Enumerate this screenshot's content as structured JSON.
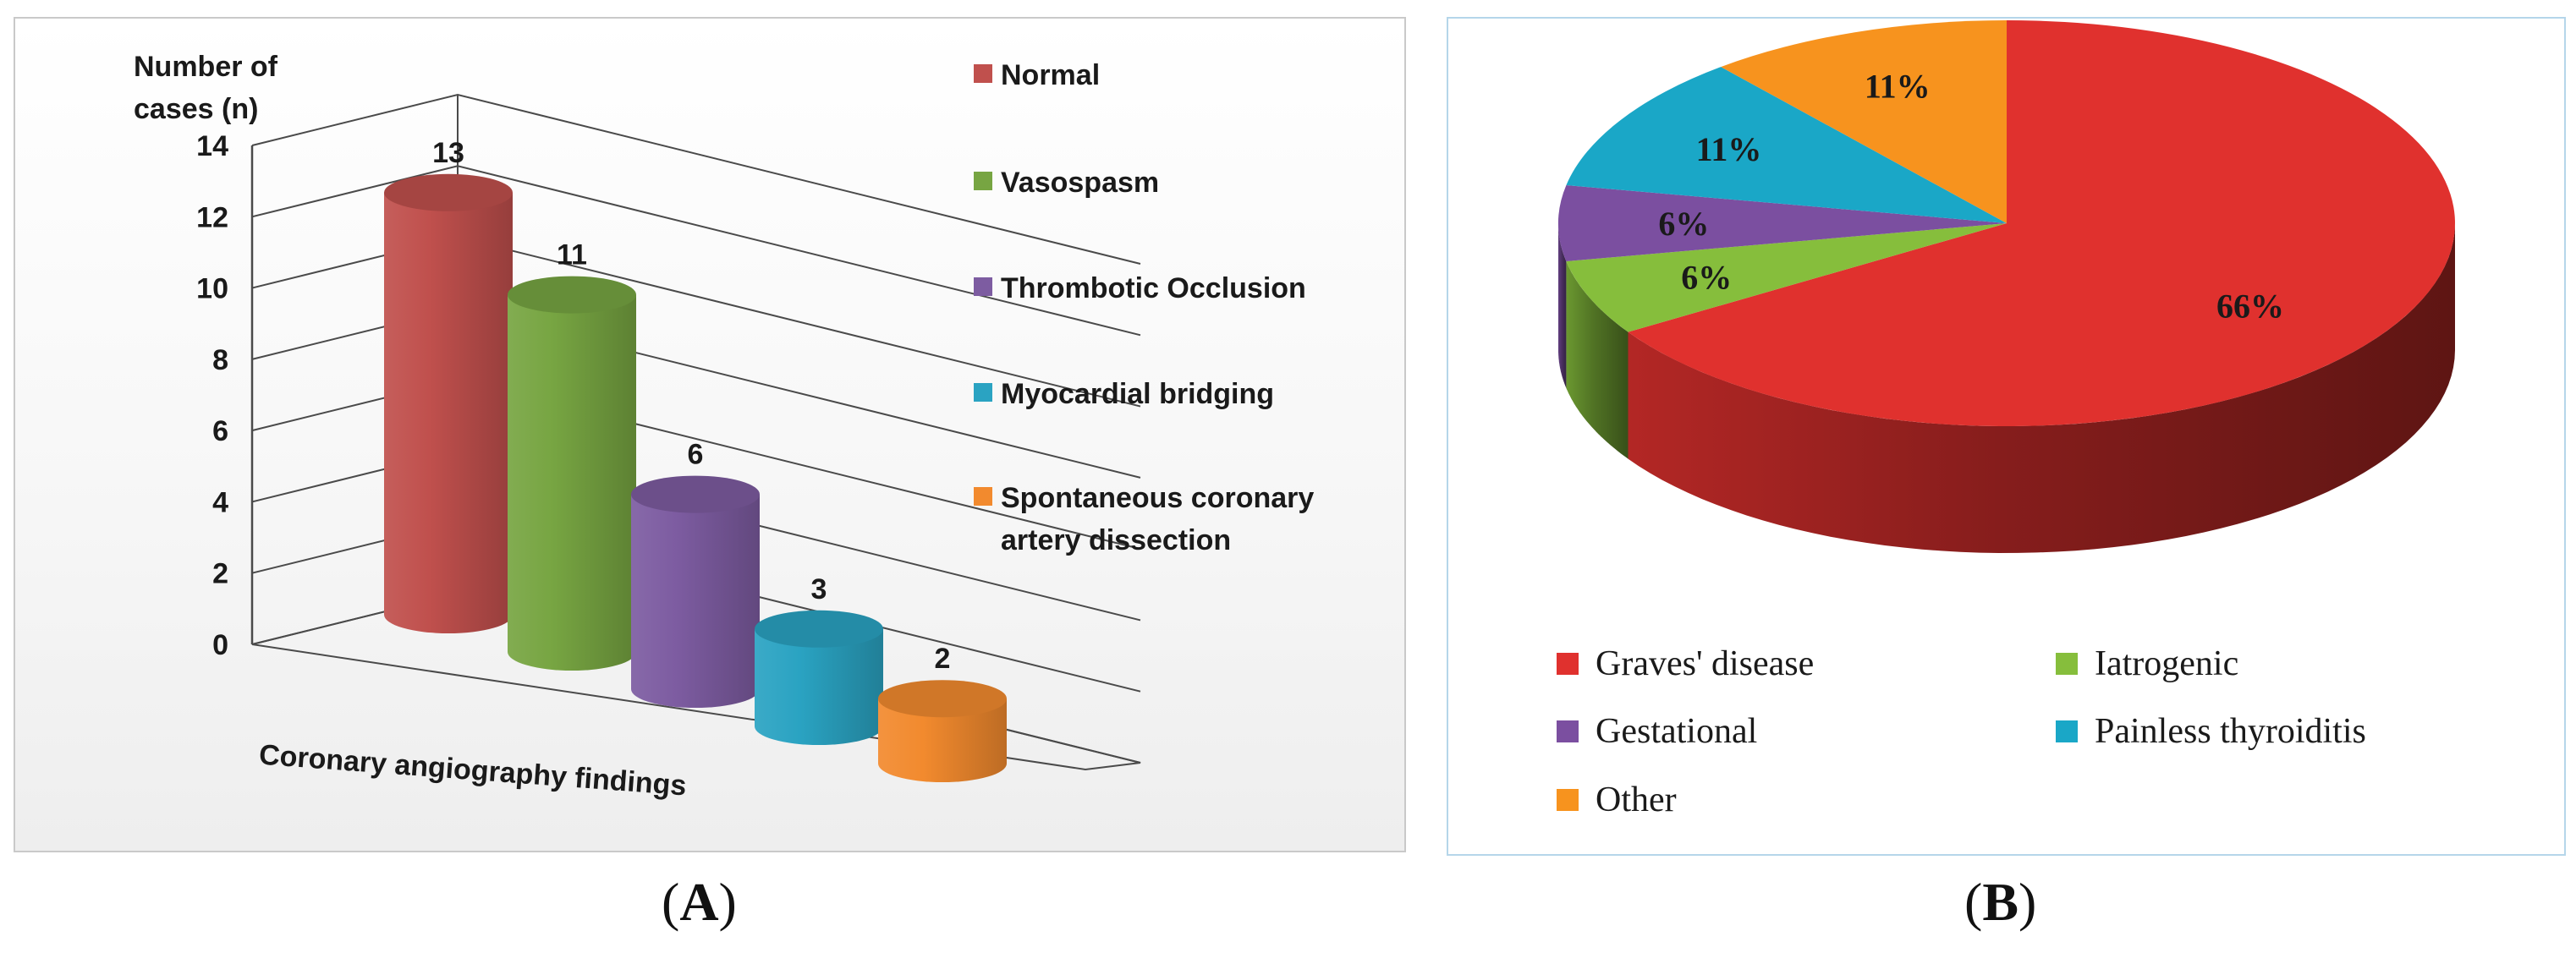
{
  "chart_data": [
    {
      "type": "bar",
      "panel": "A",
      "style": "3d-cylinder",
      "ylabel": "Number of cases (n)",
      "ylabel_lines": [
        "Number of",
        "cases (n)"
      ],
      "xlabel": "Coronary angiography findings",
      "ylim": [
        0,
        14
      ],
      "yticks": [
        0,
        2,
        4,
        6,
        8,
        10,
        12,
        14
      ],
      "categories": [
        "Normal",
        "Vasospasm",
        "Thrombotic Occlusion",
        "Myocardial bridging",
        "Spontaneous coronary artery dissection"
      ],
      "legend_lines": [
        [
          "Normal"
        ],
        [
          "Vasospasm"
        ],
        [
          "Thrombotic Occlusion"
        ],
        [
          "Myocardial bridging"
        ],
        [
          "Spontaneous coronary",
          "artery dissection"
        ]
      ],
      "values": [
        13,
        11,
        6,
        3,
        2
      ],
      "colors": [
        "#c0504d",
        "#77a542",
        "#7d5ca1",
        "#2aa3c2",
        "#f28a2e"
      ],
      "legend_position": "right"
    },
    {
      "type": "pie",
      "panel": "B",
      "style": "3d",
      "labels": [
        "Graves' disease",
        "Iatrogenic",
        "Gestational",
        "Painless thyroiditis",
        "Other"
      ],
      "values": [
        66,
        6,
        6,
        11,
        11
      ],
      "value_labels": [
        "66%",
        "6%",
        "6%",
        "11%",
        "11%"
      ],
      "colors": [
        "#e0312e",
        "#86be3c",
        "#7b4fa0",
        "#1aa7c7",
        "#f7931e"
      ],
      "legend_position": "bottom"
    }
  ],
  "captions": {
    "a": "A",
    "b": "B"
  }
}
